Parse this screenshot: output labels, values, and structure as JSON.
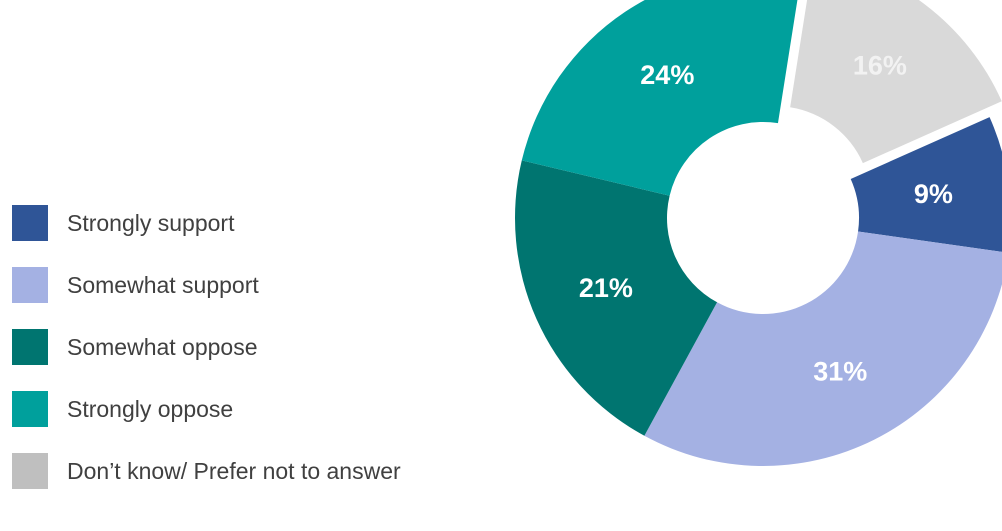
{
  "chart_data": {
    "type": "pie",
    "title": "",
    "categories": [
      "Strongly support",
      "Somewhat support",
      "Somewhat oppose",
      "Strongly oppose",
      "Don’t know/ Prefer not to answer"
    ],
    "values": [
      9,
      31,
      21,
      24,
      16
    ],
    "labels": [
      "9%",
      "31%",
      "21%",
      "24%",
      "16%"
    ],
    "colors": [
      "#2f5597",
      "#a4b1e3",
      "#007570",
      "#00a09c",
      "#d9d9d9"
    ],
    "label_colors": [
      "#ffffff",
      "#ffffff",
      "#ffffff",
      "#ffffff",
      "#f2f2f2"
    ],
    "donut": true,
    "exploded": "Don’t know/ Prefer not to answer",
    "legend_position": "left"
  }
}
